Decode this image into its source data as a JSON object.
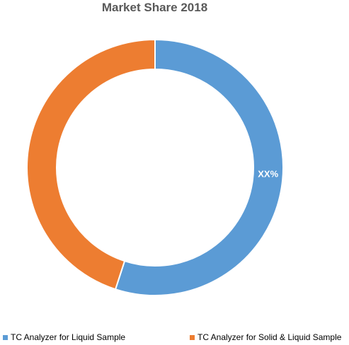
{
  "chart_data": {
    "type": "pie",
    "variant": "donut",
    "title": "Market Share 2018",
    "categories": [
      "TC Analyzer for Liquid Sample",
      "TC Analyzer for Solid & Liquid Sample"
    ],
    "values": [
      55,
      45
    ],
    "colors": [
      "#5B9BD5",
      "#ED7D31"
    ],
    "data_labels": [
      "XX%",
      ""
    ],
    "legend": {
      "position": "bottom",
      "entries": [
        "TC Analyzer for Liquid Sample",
        "TC Analyzer for Solid & Liquid Sample"
      ]
    }
  }
}
